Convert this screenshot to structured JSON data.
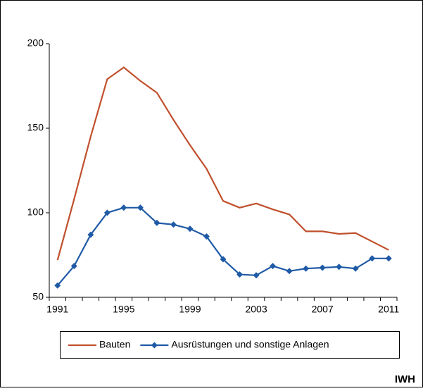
{
  "chart_data": {
    "type": "line",
    "categories": [
      "1991",
      null,
      null,
      null,
      "1995",
      null,
      null,
      null,
      "1999",
      null,
      null,
      null,
      "2003",
      null,
      null,
      null,
      "2007",
      null,
      null,
      null,
      "2011"
    ],
    "series": [
      {
        "name": "Bauten",
        "color": "#c0502d",
        "marker": "none",
        "values": [
          72,
          108,
          145,
          179,
          186,
          178,
          171,
          155,
          140,
          126,
          107,
          103,
          105.5,
          102,
          99,
          89,
          89,
          87.5,
          88,
          83,
          78
        ]
      },
      {
        "name": "Ausrüstungen und sonstige Anlagen",
        "color": "#1f5aa6",
        "marker": "diamond",
        "values": [
          57,
          68.5,
          87,
          100,
          103,
          103,
          94,
          93,
          90.5,
          86,
          72.5,
          63.5,
          63,
          68.5,
          65.5,
          67,
          67.5,
          68,
          67,
          73,
          73
        ]
      }
    ],
    "ylim": [
      50,
      200
    ],
    "yticks": [
      50,
      100,
      150,
      200
    ],
    "grid": false,
    "legend": "bottom",
    "annotation": "IWH"
  }
}
